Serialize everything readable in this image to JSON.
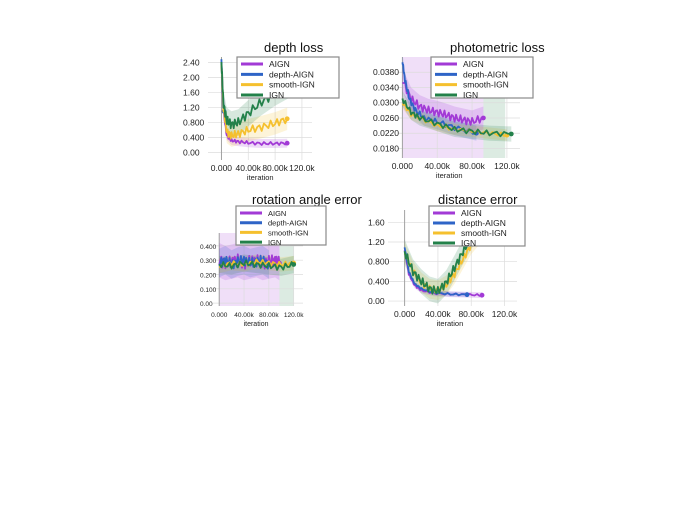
{
  "colors": {
    "AIGN": "#a23ad6",
    "depth-AIGN": "#2e64c7",
    "smooth-IGN": "#f5c02e",
    "IGN": "#23814a"
  },
  "chart_data": [
    {
      "type": "line",
      "title": "depth loss",
      "xlabel": "iteration",
      "xlim": [
        -20,
        135
      ],
      "ylim": [
        -0.2,
        2.55
      ],
      "xticks": [
        0,
        40,
        80,
        120
      ],
      "xtick_labels": [
        "0.000",
        "40.00k",
        "80.00k",
        "120.0k"
      ],
      "yticks": [
        0,
        0.4,
        0.8,
        1.2,
        1.6,
        2.0,
        2.4
      ],
      "ytick_labels": [
        "0.00",
        "0.400",
        "0.800",
        "1.20",
        "1.60",
        "2.00",
        "2.40"
      ],
      "legend": [
        "AIGN",
        "depth-AIGN",
        "smooth-IGN",
        "IGN"
      ],
      "shading": [],
      "series": [
        {
          "name": "AIGN",
          "x": [
            0,
            3,
            8,
            15,
            25,
            40,
            60,
            80,
            98
          ],
          "y": [
            2.4,
            1.1,
            0.45,
            0.32,
            0.29,
            0.26,
            0.24,
            0.24,
            0.25
          ],
          "band": 0.12
        },
        {
          "name": "depth-AIGN",
          "x": [
            0,
            2,
            4
          ],
          "y": [
            2.5,
            1.6,
            1.1
          ],
          "band": 0.05
        },
        {
          "name": "smooth-IGN",
          "x": [
            0,
            3,
            8,
            15,
            25,
            40,
            60,
            80,
            98
          ],
          "y": [
            2.4,
            1.2,
            0.55,
            0.45,
            0.5,
            0.6,
            0.68,
            0.78,
            0.9
          ],
          "band": 0.3
        },
        {
          "name": "IGN",
          "x": [
            0,
            3,
            8,
            15,
            25,
            40,
            60,
            80,
            100
          ],
          "y": [
            2.4,
            1.3,
            0.85,
            0.75,
            0.8,
            1.05,
            1.35,
            1.6,
            1.8
          ],
          "band": 0.35
        }
      ]
    },
    {
      "type": "line",
      "title": "photometric loss",
      "xlabel": "iteration",
      "xlim": [
        -5,
        135
      ],
      "ylim": [
        0.0155,
        0.042
      ],
      "xticks": [
        0,
        40,
        80,
        120
      ],
      "xtick_labels": [
        "0.000",
        "40.00k",
        "80.00k",
        "120.0k"
      ],
      "yticks": [
        0.018,
        0.022,
        0.026,
        0.03,
        0.034,
        0.038
      ],
      "ytick_labels": [
        "0.0180",
        "0.0220",
        "0.0260",
        "0.0300",
        "0.0340",
        "0.0380"
      ],
      "legend": [
        "AIGN",
        "depth-AIGN",
        "smooth-IGN",
        "IGN"
      ],
      "shading": [
        {
          "series": "AIGN",
          "x0": 0,
          "x1": 93
        },
        {
          "series": "IGN",
          "x0": 93,
          "x1": 118
        }
      ],
      "series": [
        {
          "name": "AIGN",
          "x": [
            0,
            10,
            20,
            30,
            40,
            50,
            60,
            70,
            80,
            93
          ],
          "y": [
            0.036,
            0.031,
            0.029,
            0.028,
            0.0275,
            0.0268,
            0.026,
            0.0255,
            0.025,
            0.026
          ],
          "band": 0.003
        },
        {
          "name": "depth-AIGN",
          "x": [
            0,
            3,
            8,
            15,
            25,
            40,
            60,
            85
          ],
          "y": [
            0.041,
            0.036,
            0.031,
            0.028,
            0.026,
            0.025,
            0.0235,
            0.022
          ],
          "band": 0.002
        },
        {
          "name": "smooth-IGN",
          "x": [
            0,
            10,
            20,
            40,
            60,
            80,
            100,
            120
          ],
          "y": [
            0.03,
            0.027,
            0.026,
            0.024,
            0.023,
            0.0225,
            0.022,
            0.0215
          ],
          "band": 0.0015
        },
        {
          "name": "IGN",
          "x": [
            0,
            10,
            20,
            40,
            60,
            80,
            100,
            125
          ],
          "y": [
            0.031,
            0.0275,
            0.026,
            0.0245,
            0.023,
            0.0225,
            0.022,
            0.0218
          ],
          "band": 0.002
        }
      ]
    },
    {
      "type": "line",
      "title": "rotation angle error",
      "xlabel": "iteration",
      "xlim": [
        -10,
        135
      ],
      "ylim": [
        -0.02,
        0.49
      ],
      "xticks": [
        0,
        40,
        80,
        120
      ],
      "xtick_labels": [
        "0.000",
        "40.00k",
        "80.00k",
        "120.0k"
      ],
      "yticks": [
        0,
        0.1,
        0.2,
        0.3,
        0.4
      ],
      "ytick_labels": [
        "0.00",
        "0.100",
        "0.200",
        "0.300",
        "0.400"
      ],
      "legend": [
        "AIGN",
        "depth-AIGN",
        "smooth-IGN",
        "IGN"
      ],
      "shading": [
        {
          "series": "AIGN",
          "x0": 0,
          "x1": 97
        },
        {
          "series": "IGN",
          "x0": 97,
          "x1": 120
        }
      ],
      "series": [
        {
          "name": "AIGN",
          "x": [
            0,
            10,
            20,
            30,
            40,
            50,
            60,
            70,
            80,
            90,
            97
          ],
          "y": [
            0.3,
            0.28,
            0.29,
            0.3,
            0.28,
            0.29,
            0.3,
            0.28,
            0.29,
            0.3,
            0.28
          ],
          "band": 0.12
        },
        {
          "name": "depth-AIGN",
          "x": [
            0,
            10,
            20,
            30,
            40,
            50,
            60,
            70,
            80
          ],
          "y": [
            0.28,
            0.3,
            0.27,
            0.29,
            0.3,
            0.28,
            0.29,
            0.3,
            0.27
          ],
          "band": 0.1
        },
        {
          "name": "smooth-IGN",
          "x": [
            0,
            20,
            40,
            60,
            80,
            100,
            120
          ],
          "y": [
            0.26,
            0.28,
            0.27,
            0.29,
            0.28,
            0.27,
            0.28
          ],
          "band": 0.05
        },
        {
          "name": "IGN",
          "x": [
            0,
            20,
            40,
            60,
            80,
            100,
            120
          ],
          "y": [
            0.27,
            0.26,
            0.28,
            0.27,
            0.26,
            0.25,
            0.27
          ],
          "band": 0.06
        }
      ]
    },
    {
      "type": "line",
      "title": "distance error",
      "xlabel": "iteration",
      "xlim": [
        -20,
        135
      ],
      "ylim": [
        -0.1,
        1.85
      ],
      "xticks": [
        0,
        40,
        80,
        120
      ],
      "xtick_labels": [
        "0.000",
        "40.00k",
        "80.00k",
        "120.0k"
      ],
      "yticks": [
        0,
        0.4,
        0.8,
        1.2,
        1.6
      ],
      "ytick_labels": [
        "0.00",
        "0.400",
        "0.800",
        "1.20",
        "1.60"
      ],
      "legend": [
        "AIGN",
        "depth-AIGN",
        "smooth-IGN",
        "IGN"
      ],
      "shading": [],
      "series": [
        {
          "name": "AIGN",
          "x": [
            0,
            5,
            12,
            20,
            35,
            55,
            75,
            93
          ],
          "y": [
            1.05,
            0.55,
            0.32,
            0.22,
            0.16,
            0.14,
            0.13,
            0.12
          ],
          "band": 0.06
        },
        {
          "name": "depth-AIGN",
          "x": [
            0,
            5,
            12,
            20,
            35,
            55,
            75
          ],
          "y": [
            1.1,
            0.6,
            0.35,
            0.25,
            0.17,
            0.14,
            0.13
          ],
          "band": 0.05
        },
        {
          "name": "smooth-IGN",
          "x": [
            0,
            10,
            20,
            30,
            40,
            50,
            60,
            70,
            80,
            90
          ],
          "y": [
            1.0,
            0.6,
            0.38,
            0.25,
            0.22,
            0.32,
            0.55,
            0.85,
            1.15,
            1.35
          ],
          "band": 0.2
        },
        {
          "name": "IGN",
          "x": [
            0,
            10,
            20,
            30,
            40,
            50,
            60,
            70,
            80,
            90
          ],
          "y": [
            1.0,
            0.6,
            0.4,
            0.25,
            0.2,
            0.38,
            0.68,
            1.0,
            1.3,
            1.6
          ],
          "band": 0.25
        }
      ]
    }
  ]
}
